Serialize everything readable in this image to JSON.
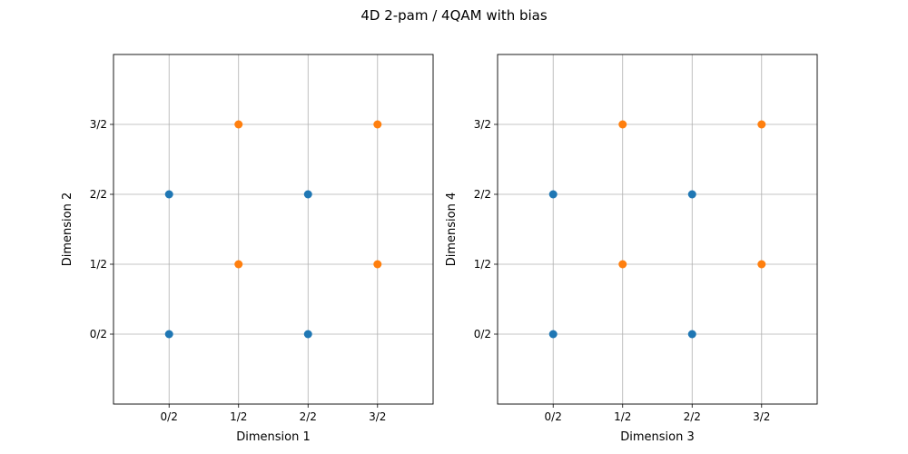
{
  "chart_data": {
    "title": "4D 2-pam / 4QAM with bias",
    "type": "scatter",
    "subplots": [
      {
        "type": "scatter",
        "xlabel": "Dimension 1",
        "ylabel": "Dimension 2",
        "xlim": [
          -0.8,
          3.8
        ],
        "ylim": [
          -1.0,
          4.0
        ],
        "xticks": [
          0,
          1,
          2,
          3
        ],
        "yticks": [
          0,
          1,
          2,
          3
        ],
        "xticklabels": [
          "0/2",
          "1/2",
          "2/2",
          "3/2"
        ],
        "yticklabels": [
          "0/2",
          "1/2",
          "2/2",
          "3/2"
        ],
        "grid": true,
        "series": [
          {
            "color": "#1f77b4",
            "points": [
              [
                0,
                0
              ],
              [
                0,
                2
              ],
              [
                2,
                0
              ],
              [
                2,
                2
              ]
            ]
          },
          {
            "color": "#ff7f0e",
            "points": [
              [
                1,
                1
              ],
              [
                1,
                3
              ],
              [
                3,
                1
              ],
              [
                3,
                3
              ]
            ]
          }
        ]
      },
      {
        "type": "scatter",
        "xlabel": "Dimension 3",
        "ylabel": "Dimension 4",
        "xlim": [
          -0.8,
          3.8
        ],
        "ylim": [
          -1.0,
          4.0
        ],
        "xticks": [
          0,
          1,
          2,
          3
        ],
        "yticks": [
          0,
          1,
          2,
          3
        ],
        "xticklabels": [
          "0/2",
          "1/2",
          "2/2",
          "3/2"
        ],
        "yticklabels": [
          "0/2",
          "1/2",
          "2/2",
          "3/2"
        ],
        "grid": true,
        "series": [
          {
            "color": "#1f77b4",
            "points": [
              [
                0,
                0
              ],
              [
                0,
                2
              ],
              [
                2,
                0
              ],
              [
                2,
                2
              ]
            ]
          },
          {
            "color": "#ff7f0e",
            "points": [
              [
                1,
                1
              ],
              [
                1,
                3
              ],
              [
                3,
                1
              ],
              [
                3,
                3
              ]
            ]
          }
        ]
      }
    ]
  }
}
